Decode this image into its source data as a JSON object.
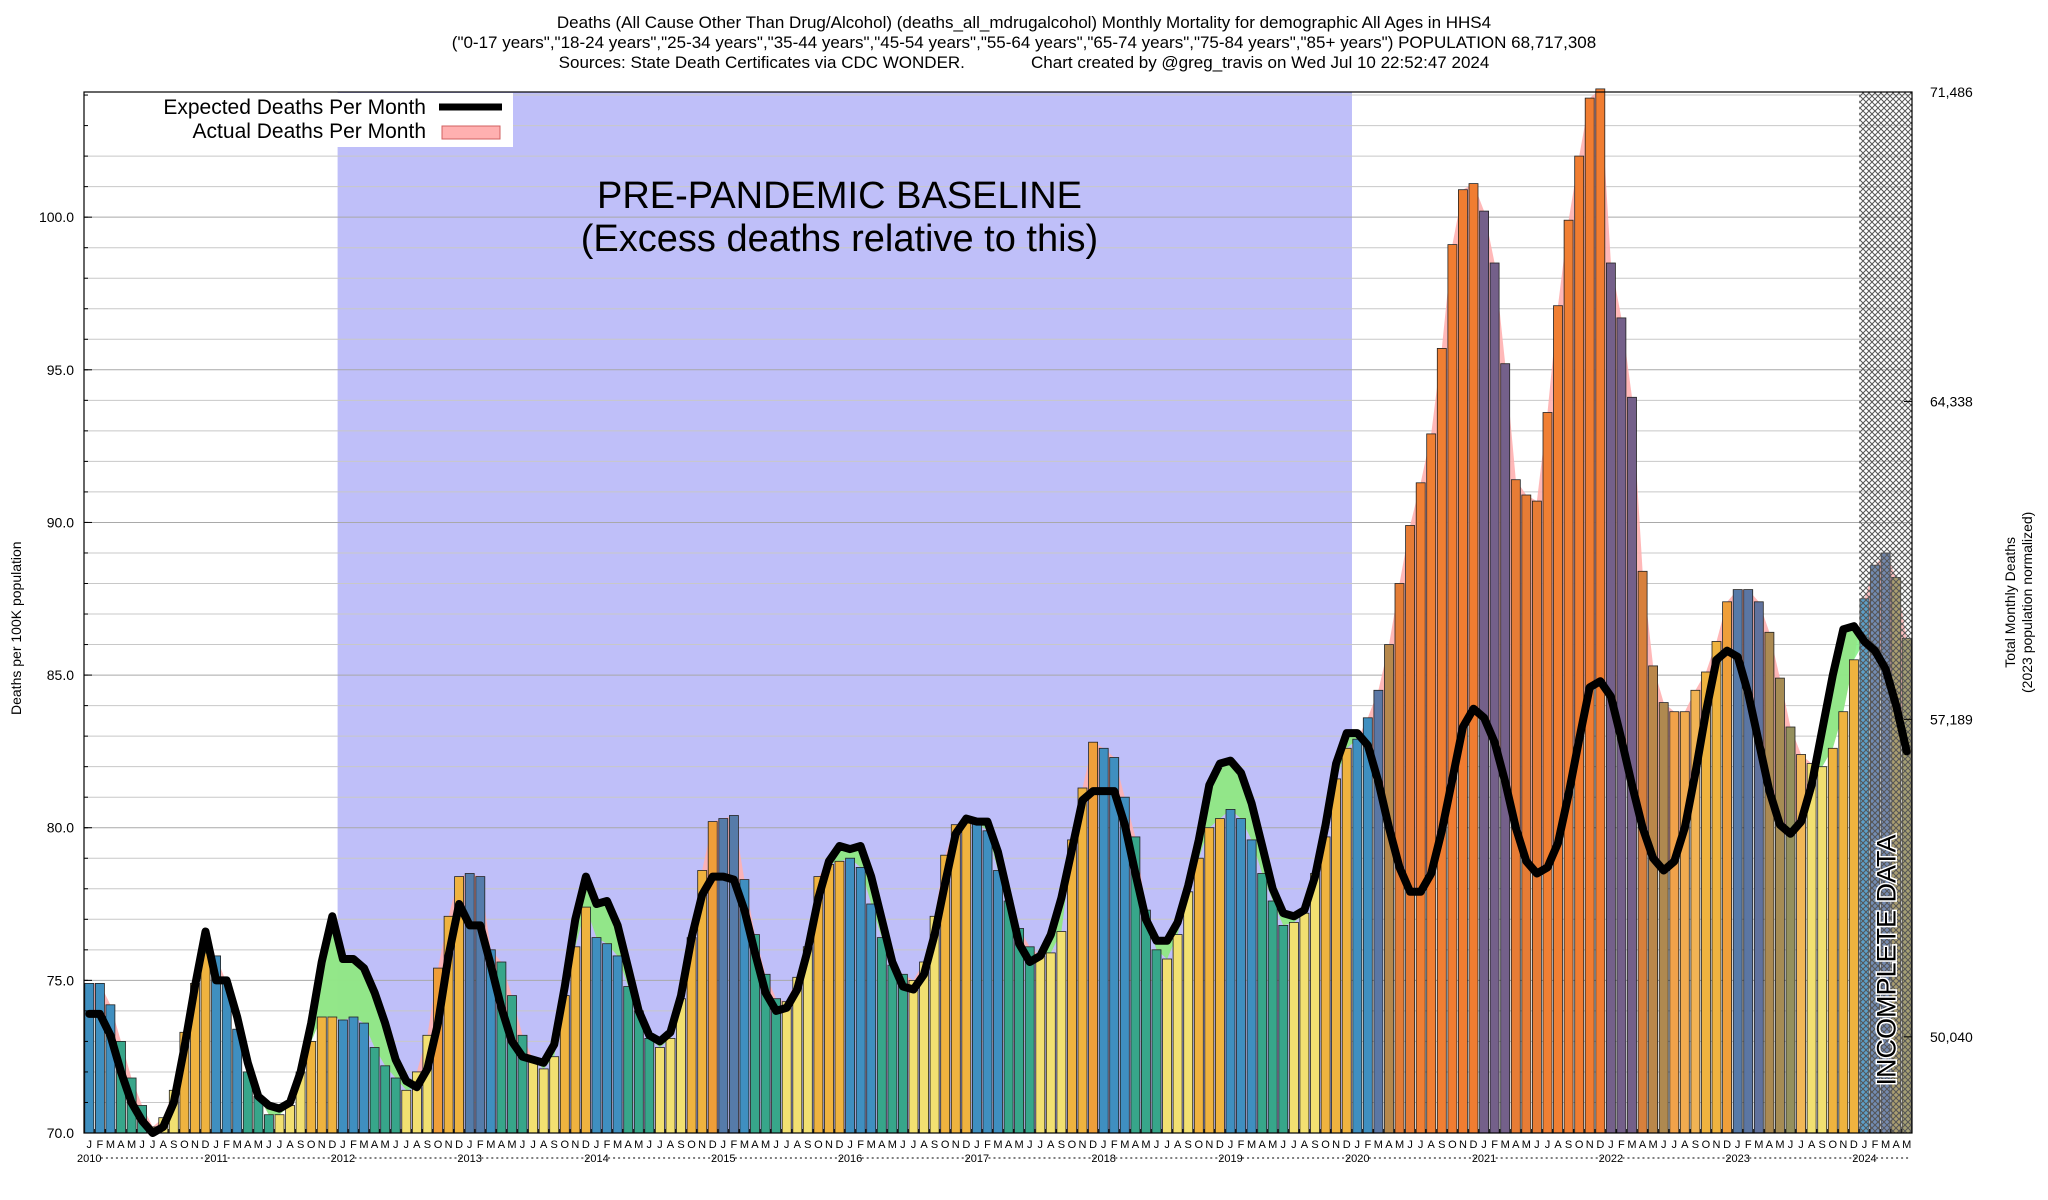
{
  "header": {
    "line1": "Deaths (All Cause Other Than Drug/Alcohol) (deaths_all_mdrugalcohol) Monthly Mortality for demographic All Ages in HHS4",
    "line2": "(\"0-17 years\",\"18-24 years\",\"25-34 years\",\"35-44 years\",\"45-54 years\",\"55-64 years\",\"65-74 years\",\"75-84 years\",\"85+ years\") POPULATION 68,717,308",
    "line3": "Sources: State Death Certificates via CDC WONDER.              Chart created by @greg_travis on Wed Jul 10 22:52:47 2024"
  },
  "chart_data": {
    "type": "bar",
    "title": "Deaths (All Cause Other Than Drug/Alcohol) (deaths_all_mdrugalcohol) Monthly Mortality for demographic All Ages in HHS4",
    "ylabel": "Deaths per 100K population",
    "ylabel_right_line1": "Total Monthly Deaths",
    "ylabel_right_line2": "(2023 population normalized)",
    "ylim": [
      70,
      104.1
    ],
    "grid": true,
    "yticks": [
      {
        "v": 70,
        "label": "70.0"
      },
      {
        "v": 75,
        "label": "75.0"
      },
      {
        "v": 80,
        "label": "80.0"
      },
      {
        "v": 85,
        "label": "85.0"
      },
      {
        "v": 90,
        "label": "90.0"
      },
      {
        "v": 95,
        "label": "95.0"
      },
      {
        "v": 100,
        "label": "100.0"
      }
    ],
    "right_ticks": [
      {
        "v": 73.15,
        "label": "50,040"
      },
      {
        "v": 83.55,
        "label": "57,189"
      },
      {
        "v": 93.96,
        "label": "64,338"
      },
      {
        "v": 104.1,
        "label": "71,486"
      }
    ],
    "month_letters": [
      "J",
      "F",
      "M",
      "A",
      "M",
      "J",
      "J",
      "A",
      "S",
      "O",
      "N",
      "D"
    ],
    "years": [
      "2010",
      "2011",
      "2012",
      "2013",
      "2014",
      "2015",
      "2016",
      "2017",
      "2018",
      "2019",
      "2020",
      "2021",
      "2022",
      "2023",
      "2024"
    ],
    "start": "2010-01",
    "legend": {
      "position": "top-left",
      "expected": "Expected Deaths Per Month",
      "actual": "Actual Deaths Per Month"
    },
    "baseline_band": {
      "from": "2012-01",
      "to": "2019-12",
      "label1": "PRE-PANDEMIC BASELINE",
      "label2": "(Excess deaths relative to this)"
    },
    "incomplete": {
      "from": "2024-01",
      "label": "INCOMPLETE DATA"
    },
    "colors": {
      "band": "#bfbff9",
      "excess_fill": "#ffb0b0",
      "deficit_fill": "#80ee80",
      "expected_line": "#000000",
      "winter": "#3f8fc0",
      "spring": "#37a68a",
      "summer": "#f2e071",
      "fall": "#efb33f",
      "excess_orange": "#f07a30",
      "excess_purple": "#7a5b84",
      "hatch": "#888888"
    },
    "series": [
      {
        "name": "Actual Deaths Per Month",
        "values": [
          74.9,
          74.9,
          74.2,
          73.0,
          71.8,
          70.9,
          70.2,
          70.5,
          71.4,
          73.3,
          74.9,
          75.9,
          75.8,
          74.9,
          73.4,
          72.0,
          71.2,
          70.6,
          70.6,
          70.9,
          72.0,
          73.0,
          73.8,
          73.8,
          73.7,
          73.8,
          73.6,
          72.8,
          72.2,
          71.8,
          71.4,
          72.0,
          73.2,
          75.4,
          77.1,
          78.4,
          78.5,
          78.4,
          76.0,
          75.6,
          74.5,
          73.2,
          72.4,
          72.1,
          72.5,
          74.5,
          76.1,
          77.4,
          76.4,
          76.2,
          75.8,
          74.8,
          74.0,
          73.1,
          72.8,
          73.1,
          74.4,
          76.4,
          78.6,
          80.2,
          80.3,
          80.4,
          78.3,
          76.5,
          75.2,
          74.4,
          74.3,
          75.1,
          76.1,
          78.4,
          78.8,
          78.9,
          79.0,
          78.7,
          77.5,
          76.4,
          75.5,
          75.2,
          75.0,
          75.6,
          77.1,
          79.1,
          80.1,
          80.2,
          80.3,
          79.9,
          78.6,
          77.6,
          76.7,
          76.1,
          75.8,
          75.9,
          76.6,
          79.6,
          81.3,
          82.8,
          82.6,
          82.3,
          81.0,
          79.7,
          77.3,
          76.0,
          75.7,
          76.5,
          77.9,
          79.0,
          80.0,
          80.3,
          80.6,
          80.3,
          79.6,
          78.5,
          77.6,
          76.8,
          76.9,
          77.2,
          78.5,
          79.7,
          81.6,
          82.6,
          82.9,
          83.6,
          84.5,
          86.0,
          88.0,
          89.9,
          91.3,
          92.9,
          95.7,
          99.1,
          100.9,
          101.1,
          100.2,
          98.5,
          95.2,
          91.4,
          90.9,
          90.7,
          93.6,
          97.1,
          99.9,
          102.0,
          103.9,
          104.2,
          98.5,
          96.7,
          94.1,
          88.4,
          85.3,
          84.1,
          83.8,
          83.8,
          84.5,
          85.1,
          86.1,
          87.4,
          87.8,
          87.8,
          87.4,
          86.4,
          84.9,
          83.3,
          82.4,
          82.1,
          82.0,
          82.6,
          83.8,
          85.5,
          87.5,
          88.6,
          89.0,
          88.2,
          86.2
        ]
      },
      {
        "name": "Expected Deaths Per Month",
        "values": [
          73.9,
          73.9,
          73.2,
          72.0,
          71.0,
          70.4,
          70.0,
          70.2,
          71.0,
          72.8,
          74.8,
          76.6,
          75.0,
          75.0,
          73.8,
          72.3,
          71.2,
          70.9,
          70.8,
          71.0,
          72.0,
          73.6,
          75.6,
          77.1,
          75.7,
          75.7,
          75.4,
          74.6,
          73.6,
          72.4,
          71.7,
          71.5,
          72.1,
          73.6,
          75.8,
          77.5,
          76.8,
          76.8,
          75.5,
          74.1,
          73.0,
          72.5,
          72.4,
          72.3,
          72.9,
          74.8,
          77.0,
          78.4,
          77.5,
          77.6,
          76.8,
          75.4,
          74.0,
          73.2,
          73.0,
          73.3,
          74.5,
          76.4,
          77.8,
          78.4,
          78.4,
          78.3,
          77.3,
          75.9,
          74.6,
          74.0,
          74.1,
          74.7,
          76.0,
          77.7,
          78.9,
          79.4,
          79.3,
          79.4,
          78.4,
          77.0,
          75.6,
          74.8,
          74.7,
          75.2,
          76.5,
          78.2,
          79.8,
          80.3,
          80.2,
          80.2,
          79.2,
          77.7,
          76.2,
          75.6,
          75.8,
          76.5,
          77.7,
          79.3,
          80.9,
          81.2,
          81.2,
          81.2,
          80.1,
          78.5,
          77.0,
          76.3,
          76.3,
          76.9,
          78.1,
          79.6,
          81.4,
          82.1,
          82.2,
          81.8,
          80.8,
          79.4,
          78.0,
          77.2,
          77.1,
          77.3,
          78.4,
          80.1,
          82.1,
          83.1,
          83.1,
          82.7,
          81.5,
          80.0,
          78.7,
          77.9,
          77.9,
          78.5,
          79.9,
          81.6,
          83.3,
          83.9,
          83.6,
          82.8,
          81.5,
          80.0,
          78.9,
          78.5,
          78.7,
          79.5,
          81.1,
          82.9,
          84.6,
          84.8,
          84.3,
          82.9,
          81.4,
          80.0,
          79.0,
          78.6,
          78.9,
          80.0,
          81.8,
          83.8,
          85.5,
          85.8,
          85.6,
          84.4,
          82.8,
          81.2,
          80.1,
          79.8,
          80.2,
          81.4,
          83.2,
          85.0,
          86.5,
          86.6,
          86.1,
          85.8,
          85.2,
          84.0,
          82.5
        ]
      }
    ]
  }
}
